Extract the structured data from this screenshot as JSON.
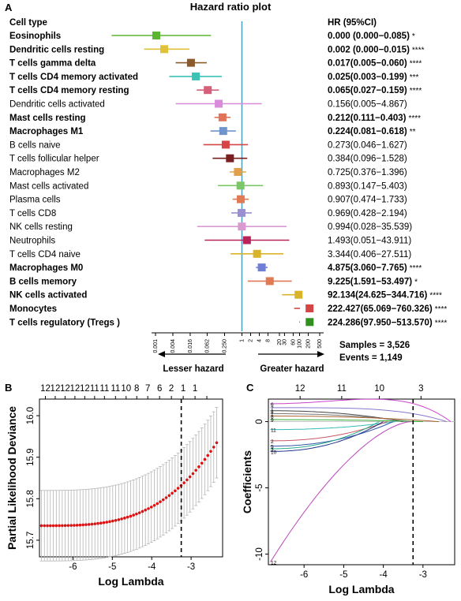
{
  "panel_a": {
    "letter": "A",
    "title": "Hazard ratio plot",
    "col_header_label": "Cell type",
    "col_header_hr": "HR (95%CI)",
    "left_arrow_label": "Lesser hazard",
    "right_arrow_label": "Greater hazard",
    "samples_text": "Samples = 3,526",
    "events_text": "Events = 1,149",
    "ref_line_color": "#4a9fbd"
  },
  "panel_b": {
    "letter": "B"
  },
  "panel_c": {
    "letter": "C"
  },
  "chart_data": [
    {
      "type": "forest",
      "title": "Hazard ratio plot",
      "scale": "log",
      "reference_value": 1,
      "x_ticks": [
        "0.001",
        "0.004",
        "0.016",
        "0.062",
        "0.250",
        "1",
        "2",
        "4",
        "8",
        "20",
        "30",
        "60",
        "100",
        "200",
        "500"
      ],
      "x_tick_values": [
        0.001,
        0.004,
        0.016,
        0.062,
        0.25,
        1,
        2,
        4,
        8,
        20,
        30,
        60,
        100,
        200,
        500
      ],
      "rows": [
        {
          "label": "Eosinophils",
          "hr": 0.0,
          "lo": 3e-05,
          "hi": 0.085,
          "text": "0.000 (0.000−0.085)",
          "sig": "*",
          "bold": true,
          "color": "#5bb531"
        },
        {
          "label": "Dendritic cells resting",
          "hr": 0.002,
          "lo": 0.0004,
          "hi": 0.015,
          "text": "0.002 (0.000−0.015)",
          "sig": "****",
          "bold": true,
          "color": "#e0c23a"
        },
        {
          "label": "T cells gamma delta",
          "hr": 0.017,
          "lo": 0.005,
          "hi": 0.06,
          "text": "0.017(0.005−0.060)",
          "sig": "****",
          "bold": true,
          "color": "#8b5a2b"
        },
        {
          "label": "T cells CD4 memory activated",
          "hr": 0.025,
          "lo": 0.003,
          "hi": 0.199,
          "text": "0.025(0.003−0.199)",
          "sig": "***",
          "bold": true,
          "color": "#3cc3b5"
        },
        {
          "label": "T cells CD4 memory resting",
          "hr": 0.065,
          "lo": 0.027,
          "hi": 0.159,
          "text": "0.065(0.027−0.159)",
          "sig": "****",
          "bold": true,
          "color": "#d6607a"
        },
        {
          "label": "Dendritic cells activated",
          "hr": 0.156,
          "lo": 0.005,
          "hi": 4.867,
          "text": "0.156(0.005−4.867)",
          "sig": "",
          "bold": false,
          "color": "#d98bd9"
        },
        {
          "label": "Mast cells resting",
          "hr": 0.212,
          "lo": 0.111,
          "hi": 0.403,
          "text": "0.212(0.111−0.403)",
          "sig": "****",
          "bold": true,
          "color": "#e0735a"
        },
        {
          "label": "Macrophages M1",
          "hr": 0.224,
          "lo": 0.081,
          "hi": 0.618,
          "text": "0.224(0.081−0.618)",
          "sig": "**",
          "bold": true,
          "color": "#6f95cc"
        },
        {
          "label": "B cells naive",
          "hr": 0.273,
          "lo": 0.046,
          "hi": 1.627,
          "text": "0.273(0.046−1.627)",
          "sig": "",
          "bold": false,
          "color": "#d64545"
        },
        {
          "label": "T cells follicular helper",
          "hr": 0.384,
          "lo": 0.096,
          "hi": 1.528,
          "text": "0.384(0.096−1.528)",
          "sig": "",
          "bold": false,
          "color": "#7a1f1f"
        },
        {
          "label": "Macrophages M2",
          "hr": 0.725,
          "lo": 0.376,
          "hi": 1.396,
          "text": "0.725(0.376−1.396)",
          "sig": "",
          "bold": false,
          "color": "#e3a04a"
        },
        {
          "label": "Mast cells activated",
          "hr": 0.893,
          "lo": 0.147,
          "hi": 5.403,
          "text": "0.893(0.147−5.403)",
          "sig": "",
          "bold": false,
          "color": "#7cc66a"
        },
        {
          "label": "Plasma cells",
          "hr": 0.907,
          "lo": 0.474,
          "hi": 1.733,
          "text": "0.907(0.474−1.733)",
          "sig": "",
          "bold": false,
          "color": "#e07a55"
        },
        {
          "label": "T cells CD8",
          "hr": 0.969,
          "lo": 0.428,
          "hi": 2.194,
          "text": "0.969(0.428−2.194)",
          "sig": "",
          "bold": false,
          "color": "#9a8fd0"
        },
        {
          "label": "NK cells resting",
          "hr": 0.994,
          "lo": 0.028,
          "hi": 35.539,
          "text": "0.994(0.028−35.539)",
          "sig": "",
          "bold": false,
          "color": "#d99ad0"
        },
        {
          "label": "Neutrophils",
          "hr": 1.493,
          "lo": 0.051,
          "hi": 43.911,
          "text": "1.493(0.051−43.911)",
          "sig": "",
          "bold": false,
          "color": "#b8245a"
        },
        {
          "label": "T cells CD4 naive",
          "hr": 3.344,
          "lo": 0.406,
          "hi": 27.511,
          "text": "3.344(0.406−27.511)",
          "sig": "",
          "bold": false,
          "color": "#d9b42a"
        },
        {
          "label": "Macrophages M0",
          "hr": 4.875,
          "lo": 3.06,
          "hi": 7.765,
          "text": "4.875(3.060−7.765)",
          "sig": "****",
          "bold": true,
          "color": "#6f7fd6"
        },
        {
          "label": "B cells memory",
          "hr": 9.225,
          "lo": 1.591,
          "hi": 53.497,
          "text": "9.225(1.591−53.497)",
          "sig": "*",
          "bold": true,
          "color": "#e07a55"
        },
        {
          "label": "NK cells activated",
          "hr": 92.134,
          "lo": 24.625,
          "hi": 344.716,
          "text": "92.134(24.625−344.716)",
          "sig": "****",
          "bold": true,
          "color": "#d9b42a"
        },
        {
          "label": "Monocytes",
          "hr": 222.427,
          "lo": 65.069,
          "hi": 760.326,
          "text": "222.427(65.069−760.326)",
          "sig": "****",
          "bold": true,
          "color": "#d64545"
        },
        {
          "label": "T cells regulatory (Tregs )",
          "hr": 224.286,
          "lo": 97.95,
          "hi": 513.57,
          "text": "224.286(97.950−513.570)",
          "sig": "****",
          "bold": true,
          "color": "#2f8f1f"
        }
      ]
    },
    {
      "type": "scatter",
      "xlabel": "Log Lambda",
      "ylabel": "Partial Likelihood Deviance",
      "xlim": [
        -6.85,
        -2.2
      ],
      "ylim": [
        15.66,
        16.04
      ],
      "x_ticks": [
        -6,
        -5,
        -4,
        -3
      ],
      "y_ticks": [
        15.7,
        15.8,
        15.9,
        16.0
      ],
      "top_ticks_x": [
        -6.7,
        -6.45,
        -6.2,
        -5.95,
        -5.7,
        -5.45,
        -5.2,
        -4.92,
        -4.65,
        -4.38,
        -4.1,
        -3.8,
        -3.5,
        -3.2,
        -2.9,
        -2.6
      ],
      "top_ticks_labels": [
        "12",
        "12",
        "12",
        "12",
        "12",
        "11",
        "11",
        "11",
        "10",
        "8",
        "7",
        "6",
        "2",
        "1",
        "1",
        ""
      ],
      "vline_x": -3.25,
      "point_color": "#dd1111",
      "series": {
        "x_start": -6.8,
        "x_end": -2.35,
        "n": 60,
        "y_flat": 15.735,
        "y_end": 15.935,
        "err_flat": 0.085,
        "err_end": 0.085
      }
    },
    {
      "type": "line",
      "xlabel": "Log Lambda",
      "ylabel": "Coefficients",
      "xlim": [
        -6.9,
        -2.2
      ],
      "ylim": [
        -10.8,
        1.7
      ],
      "x_ticks": [
        -6,
        -5,
        -4,
        -3
      ],
      "y_ticks": [
        -10,
        -5,
        0
      ],
      "top_ticks_x": [
        -6.1,
        -5.05,
        -4.1,
        -3.05
      ],
      "top_ticks_labels": [
        "12",
        "11",
        "10",
        "3"
      ],
      "vline_x": -3.25,
      "series": [
        {
          "name": "6",
          "color": "#cc44cc",
          "y0": 1.35,
          "xz": -2.3,
          "shape": "bulge"
        },
        {
          "name": "7",
          "color": "#8877cc",
          "y0": 1.05,
          "xz": -2.4,
          "shape": "arc"
        },
        {
          "name": "4",
          "color": "#444444",
          "y0": 0.82,
          "xz": -3.5,
          "shape": "fall"
        },
        {
          "name": "1",
          "color": "#777777",
          "y0": 0.6,
          "xz": -3.3,
          "shape": "fall"
        },
        {
          "name": "8",
          "color": "#aa6633",
          "y0": 0.42,
          "xz": -2.6,
          "shape": "fall"
        },
        {
          "name": "9",
          "color": "#33aa33",
          "y0": 0.15,
          "xz": -3.0,
          "shape": "fall"
        },
        {
          "name": "11",
          "color": "#33bbbb",
          "y0": -0.6,
          "xz": -3.7,
          "shape": "fall"
        },
        {
          "name": "2",
          "color": "#cc5566",
          "y0": -1.45,
          "xz": -3.9,
          "shape": "fall"
        },
        {
          "name": "5",
          "color": "#3355aa",
          "y0": -1.85,
          "xz": -3.75,
          "shape": "fall"
        },
        {
          "name": "3",
          "color": "#22aa88",
          "y0": -2.05,
          "xz": -4.1,
          "shape": "fall"
        },
        {
          "name": "10",
          "color": "#223388",
          "y0": -2.25,
          "xz": -4.0,
          "shape": "fall"
        },
        {
          "name": "12",
          "color": "#bb44bb",
          "y0": -10.6,
          "xz": -3.3,
          "shape": "steep"
        }
      ]
    }
  ]
}
